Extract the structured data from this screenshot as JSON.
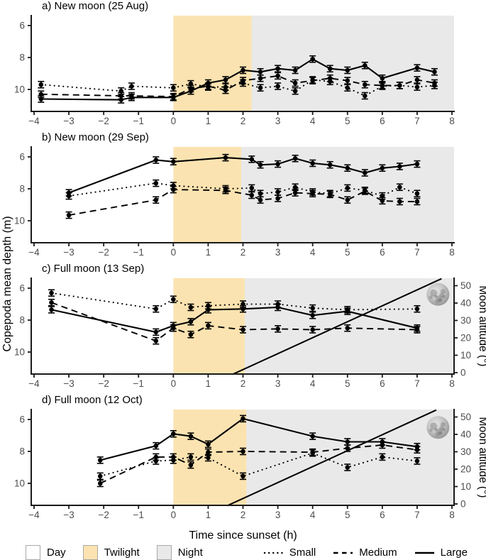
{
  "figure": {
    "xlabel": "Time since sunset (h)",
    "ylabel_left": "Copepoda mean depth (m)",
    "ylabel_right": "Moon altitude (°)",
    "x_ticks": [
      -4,
      -3,
      -2,
      -1,
      0,
      1,
      2,
      3,
      4,
      5,
      6,
      7,
      8
    ],
    "depth_ticks": [
      6,
      8,
      10
    ],
    "alt_ticks": [
      0,
      10,
      20,
      30,
      40,
      50
    ],
    "x_range": [
      -4,
      8
    ],
    "depth_axis_range": [
      5.2,
      11.4
    ],
    "alt_axis_range": [
      -1,
      55
    ],
    "colors": {
      "day": "#FFFFFF",
      "twilight": "#FBE3B1",
      "night": "#E9E9E9",
      "data": "#000000",
      "tick_text": "#4D4D4D",
      "axis": "#1A1A1A"
    }
  },
  "legend": {
    "regions": [
      {
        "label": "Day",
        "color": "#FFFFFF"
      },
      {
        "label": "Twilight",
        "color": "#FBE3B1"
      },
      {
        "label": "Night",
        "color": "#E9E9E9"
      }
    ],
    "series": [
      {
        "label": "Small",
        "style": "dotted"
      },
      {
        "label": "Medium",
        "style": "dashed"
      },
      {
        "label": "Large",
        "style": "solid"
      }
    ]
  },
  "chart_data": [
    {
      "id": "a",
      "title": "a) New moon (25 Aug)",
      "type": "line",
      "twilight_span": [
        0,
        2.25
      ],
      "night_span": [
        2.25,
        8
      ],
      "x": [
        -3.8,
        -1.5,
        -1.2,
        0,
        0.5,
        1,
        1.5,
        2,
        2.5,
        3,
        3.5,
        4,
        4.5,
        5,
        5.5,
        6,
        6.5,
        7,
        7.5
      ],
      "series": [
        {
          "name": "Small",
          "style": "dotted",
          "err": 0.2,
          "values": [
            9.7,
            10.1,
            9.8,
            9.9,
            9.65,
            9.85,
            9.85,
            9.6,
            9.9,
            9.8,
            10.1,
            9.4,
            9.5,
            9.9,
            10.4,
            9.8,
            9.75,
            9.85,
            9.75
          ]
        },
        {
          "name": "Medium",
          "style": "dashed",
          "err": 0.2,
          "values": [
            10.3,
            10.4,
            10.4,
            10.45,
            9.95,
            9.8,
            10.05,
            9.45,
            9.3,
            9.15,
            9.6,
            9.45,
            9.3,
            9.45,
            9.7,
            9.75,
            9.75,
            9.4,
            9.6
          ]
        },
        {
          "name": "Large",
          "style": "solid",
          "err": 0.2,
          "values": [
            10.6,
            10.65,
            10.5,
            10.5,
            10.1,
            9.6,
            9.4,
            8.8,
            8.9,
            8.7,
            8.8,
            8.1,
            8.7,
            8.8,
            8.5,
            9.3,
            null,
            8.65,
            8.9
          ]
        }
      ],
      "moon": null
    },
    {
      "id": "b",
      "title": "b) New moon (29 Sep)",
      "type": "line",
      "twilight_span": [
        0,
        1.95
      ],
      "night_span": [
        1.95,
        8
      ],
      "x": [
        -3,
        -0.5,
        0,
        1.5,
        2.25,
        2.5,
        3,
        3.5,
        4,
        4.5,
        5,
        5.5,
        6,
        6.5,
        7
      ],
      "series": [
        {
          "name": "Small",
          "style": "dotted",
          "err": 0.2,
          "values": [
            8.45,
            7.65,
            7.8,
            8.0,
            7.95,
            8.3,
            8.2,
            7.9,
            8.2,
            8.3,
            7.95,
            8.1,
            8.45,
            7.9,
            8.3
          ]
        },
        {
          "name": "Medium",
          "style": "dashed",
          "err": 0.2,
          "values": [
            9.65,
            8.7,
            8.05,
            8.1,
            8.4,
            8.7,
            8.6,
            8.25,
            8.3,
            8.35,
            8.7,
            8.15,
            8.75,
            8.8,
            8.8
          ]
        },
        {
          "name": "Large",
          "style": "solid",
          "err": 0.2,
          "values": [
            8.25,
            6.2,
            6.3,
            6.05,
            6.15,
            6.5,
            6.45,
            6.1,
            6.4,
            6.5,
            6.7,
            7.0,
            6.7,
            6.6,
            6.45
          ]
        }
      ],
      "moon": null
    },
    {
      "id": "c",
      "title": "c) Full moon (13 Sep)",
      "type": "line",
      "twilight_span": [
        0,
        2.05
      ],
      "night_span": [
        2.05,
        8
      ],
      "x": [
        -3.5,
        -0.5,
        0,
        0.5,
        1,
        2,
        3,
        4,
        5,
        7
      ],
      "series": [
        {
          "name": "Small",
          "style": "dotted",
          "err": 0.2,
          "values": [
            6.3,
            7.3,
            6.7,
            7.2,
            7.1,
            7.0,
            7.0,
            7.25,
            7.35,
            7.3
          ]
        },
        {
          "name": "Medium",
          "style": "dashed",
          "err": 0.2,
          "values": [
            6.9,
            9.3,
            8.5,
            8.9,
            8.35,
            8.6,
            8.55,
            8.6,
            8.5,
            8.6
          ]
        },
        {
          "name": "Large",
          "style": "solid",
          "err": 0.2,
          "values": [
            7.35,
            8.75,
            8.35,
            8.1,
            7.35,
            7.3,
            7.2,
            7.7,
            7.45,
            8.5
          ]
        }
      ],
      "moon": {
        "line": {
          "x": [
            1.7,
            7.7
          ],
          "alt": [
            -1,
            54
          ]
        },
        "icon": {
          "x": 7.6,
          "alt": 45
        }
      }
    },
    {
      "id": "d",
      "title": "d) Full moon (12 Oct)",
      "type": "line",
      "twilight_span": [
        0,
        2.1
      ],
      "night_span": [
        2.1,
        8
      ],
      "x": [
        -2.1,
        -0.5,
        0,
        0.5,
        1,
        2,
        4,
        5,
        6,
        7
      ],
      "series": [
        {
          "name": "Small",
          "style": "dotted",
          "err": 0.2,
          "values": [
            9.55,
            8.6,
            8.55,
            8.35,
            8.4,
            9.55,
            8.1,
            9.0,
            8.35,
            8.6
          ]
        },
        {
          "name": "Medium",
          "style": "dashed",
          "err": 0.2,
          "values": [
            10.0,
            8.35,
            8.35,
            8.85,
            8.05,
            8.0,
            8.05,
            7.8,
            7.6,
            7.9
          ]
        },
        {
          "name": "Large",
          "style": "solid",
          "err": 0.2,
          "values": [
            8.55,
            7.65,
            6.9,
            7.05,
            7.55,
            5.95,
            7.05,
            7.4,
            7.4,
            7.7
          ]
        }
      ],
      "moon": {
        "line": {
          "x": [
            1.55,
            7.55
          ],
          "alt": [
            -1,
            54
          ]
        },
        "icon": {
          "x": 7.6,
          "alt": 44
        }
      }
    }
  ]
}
